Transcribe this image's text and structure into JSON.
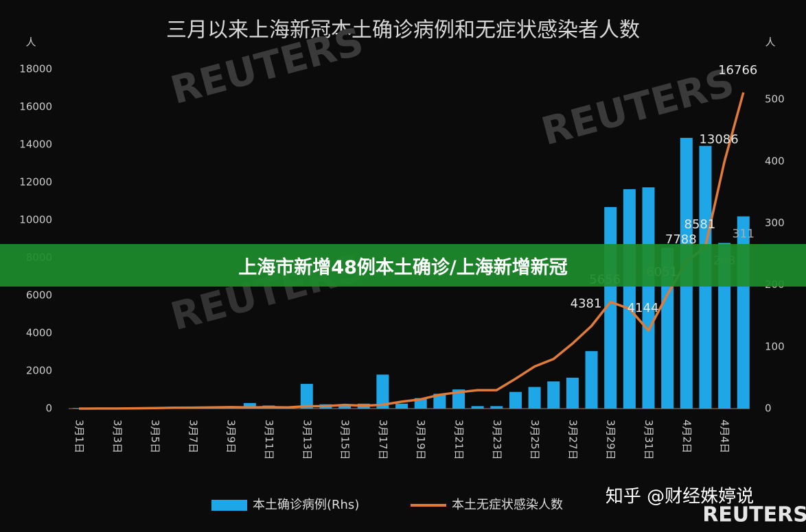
{
  "chart_data": {
    "type": "bar",
    "title": "三月以来上海新冠本土确诊病例和无症状感染者人数",
    "y_unit": "人",
    "y2_unit": "人",
    "categories": [
      "3月1日",
      null,
      "3月3日",
      null,
      "3月5日",
      null,
      "3月7日",
      null,
      "3月9日",
      null,
      "3月11日",
      null,
      "3月13日",
      null,
      "3月15日",
      null,
      "3月17日",
      null,
      "3月19日",
      null,
      "3月21日",
      null,
      "3月23日",
      null,
      "3月25日",
      null,
      "3月27日",
      null,
      "3月29日",
      null,
      "3月31日",
      null,
      "4月2日",
      null,
      "4月4日",
      null
    ],
    "series": [
      {
        "name": "本土确诊病例(Rhs)",
        "type": "bar",
        "axis": "y2",
        "color": "#1ea6e6",
        "values": [
          1,
          0,
          0,
          2,
          0,
          3,
          1,
          3,
          4,
          9,
          5,
          1,
          40,
          7,
          5,
          8,
          55,
          8,
          17,
          24,
          31,
          4,
          4,
          27,
          35,
          44,
          50,
          93,
          326,
          355,
          358,
          260,
          438,
          425,
          268,
          311
        ],
        "value_labels": [
          null,
          null,
          null,
          null,
          null,
          null,
          null,
          null,
          null,
          null,
          null,
          null,
          null,
          null,
          null,
          null,
          null,
          null,
          null,
          null,
          null,
          null,
          null,
          null,
          null,
          null,
          null,
          null,
          null,
          null,
          null,
          null,
          null,
          null,
          "268",
          "311"
        ]
      },
      {
        "name": "本土无症状感染人数",
        "type": "line",
        "color": "#e07b39",
        "values": [
          1,
          3,
          2,
          16,
          28,
          45,
          51,
          62,
          76,
          64,
          78,
          64,
          128,
          130,
          197,
          150,
          203,
          366,
          492,
          734,
          865,
          977,
          979,
          1580,
          2231,
          2631,
          3450,
          4381,
          5656,
          5298,
          4144,
          6051,
          7788,
          8581,
          13086,
          16766
        ],
        "value_labels": [
          null,
          null,
          null,
          null,
          null,
          null,
          null,
          null,
          null,
          null,
          null,
          null,
          null,
          null,
          null,
          null,
          null,
          null,
          null,
          null,
          null,
          null,
          null,
          null,
          null,
          null,
          null,
          "4381",
          "5656",
          null,
          "4144",
          "6051",
          "7788",
          "8581",
          "13086",
          "16766"
        ]
      }
    ],
    "ylim": [
      0,
      18000
    ],
    "yticks": [
      0,
      2000,
      4000,
      6000,
      8000,
      10000,
      12000,
      14000,
      16000,
      18000
    ],
    "y2lim": [
      0,
      549
    ],
    "y2ticks": [
      0,
      100,
      200,
      300,
      400,
      500
    ],
    "grid": false,
    "legend": "bottom"
  },
  "banner": "上海市新增48例本土确诊/上海新增新冠",
  "watermark": "知乎 @财经姝婷说",
  "logo": "REUTERS"
}
